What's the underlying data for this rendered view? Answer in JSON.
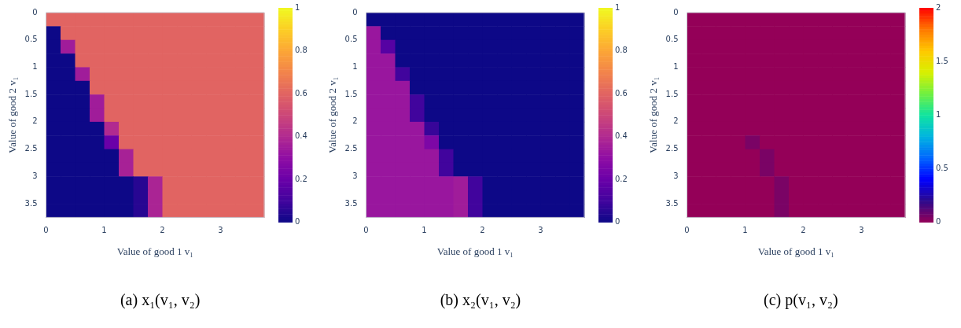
{
  "chart_data": [
    {
      "type": "heatmap",
      "title": "(a) x₁(v₁, v₂)",
      "xlabel": "Value of good 1 v₁",
      "ylabel": "Value of good 2 v₁",
      "x": [
        0.125,
        0.375,
        0.625,
        0.875,
        1.125,
        1.375,
        1.625,
        1.875,
        2.125,
        2.375,
        2.625,
        2.875,
        3.125,
        3.375,
        3.625
      ],
      "y": [
        0.125,
        0.375,
        0.625,
        0.875,
        1.125,
        1.375,
        1.625,
        1.875,
        2.125,
        2.375,
        2.625,
        2.875,
        3.125,
        3.375,
        3.625
      ],
      "xlim": [
        0,
        3.75
      ],
      "ylim": [
        3.75,
        0
      ],
      "xticks": [
        0,
        1,
        2,
        3
      ],
      "yticks": [
        0,
        0.5,
        1,
        1.5,
        2,
        2.5,
        3,
        3.5
      ],
      "clim": [
        0,
        1
      ],
      "cticks": [
        0,
        0.2,
        0.4,
        0.6,
        0.8,
        1
      ],
      "colors": [
        "#0d0887",
        "#41049d",
        "#6a00a8",
        "#8f0da4",
        "#b12a90",
        "#cc4778",
        "#e16462",
        "#f2844b",
        "#fca636",
        "#fcce25",
        "#f0f921"
      ],
      "cells": [
        [
          0.6,
          0.6,
          0.6,
          0.6,
          0.6,
          0.6,
          0.6,
          0.6,
          0.6,
          0.6,
          0.6,
          0.6,
          0.6,
          0.6,
          0.6
        ],
        [
          0,
          0.6,
          0.6,
          0.6,
          0.6,
          0.6,
          0.6,
          0.6,
          0.6,
          0.6,
          0.6,
          0.6,
          0.6,
          0.6,
          0.6
        ],
        [
          0,
          0.35,
          0.6,
          0.6,
          0.6,
          0.6,
          0.6,
          0.6,
          0.6,
          0.6,
          0.6,
          0.6,
          0.6,
          0.6,
          0.6
        ],
        [
          0,
          0,
          0.6,
          0.6,
          0.6,
          0.6,
          0.6,
          0.6,
          0.6,
          0.6,
          0.6,
          0.6,
          0.6,
          0.6,
          0.6
        ],
        [
          0,
          0,
          0.35,
          0.6,
          0.6,
          0.6,
          0.6,
          0.6,
          0.6,
          0.6,
          0.6,
          0.6,
          0.6,
          0.6,
          0.6
        ],
        [
          0,
          0,
          0,
          0.6,
          0.6,
          0.6,
          0.6,
          0.6,
          0.6,
          0.6,
          0.6,
          0.6,
          0.6,
          0.6,
          0.6
        ],
        [
          0,
          0,
          0,
          0.35,
          0.6,
          0.6,
          0.6,
          0.6,
          0.6,
          0.6,
          0.6,
          0.6,
          0.6,
          0.6,
          0.6
        ],
        [
          0,
          0,
          0,
          0.35,
          0.6,
          0.6,
          0.6,
          0.6,
          0.6,
          0.6,
          0.6,
          0.6,
          0.6,
          0.6,
          0.6
        ],
        [
          0,
          0,
          0,
          0,
          0.4,
          0.6,
          0.6,
          0.6,
          0.6,
          0.6,
          0.6,
          0.6,
          0.6,
          0.6,
          0.6
        ],
        [
          0,
          0,
          0,
          0,
          0.2,
          0.6,
          0.6,
          0.6,
          0.6,
          0.6,
          0.6,
          0.6,
          0.6,
          0.6,
          0.6
        ],
        [
          0,
          0,
          0,
          0,
          0,
          0.37,
          0.6,
          0.6,
          0.6,
          0.6,
          0.6,
          0.6,
          0.6,
          0.6,
          0.6
        ],
        [
          0,
          0,
          0,
          0,
          0,
          0.37,
          0.6,
          0.6,
          0.6,
          0.6,
          0.6,
          0.6,
          0.6,
          0.6,
          0.6
        ],
        [
          0,
          0,
          0,
          0,
          0,
          0,
          0.05,
          0.38,
          0.6,
          0.6,
          0.6,
          0.6,
          0.6,
          0.6,
          0.6
        ],
        [
          0,
          0,
          0,
          0,
          0,
          0,
          0.05,
          0.38,
          0.6,
          0.6,
          0.6,
          0.6,
          0.6,
          0.6,
          0.6
        ],
        [
          0,
          0,
          0,
          0,
          0,
          0,
          0.05,
          0.38,
          0.6,
          0.6,
          0.6,
          0.6,
          0.6,
          0.6,
          0.6
        ]
      ]
    },
    {
      "type": "heatmap",
      "title": "(b) x₂(v₁, v₂)",
      "xlabel": "Value of good 1 v₁",
      "ylabel": "Value of good 2 v₁",
      "x": [
        0.125,
        0.375,
        0.625,
        0.875,
        1.125,
        1.375,
        1.625,
        1.875,
        2.125,
        2.375,
        2.625,
        2.875,
        3.125,
        3.375,
        3.625
      ],
      "y": [
        0.125,
        0.375,
        0.625,
        0.875,
        1.125,
        1.375,
        1.625,
        1.875,
        2.125,
        2.375,
        2.625,
        2.875,
        3.125,
        3.375,
        3.625
      ],
      "xlim": [
        0,
        3.75
      ],
      "ylim": [
        3.75,
        0
      ],
      "xticks": [
        0,
        1,
        2,
        3
      ],
      "yticks": [
        0,
        0.5,
        1,
        1.5,
        2,
        2.5,
        3,
        3.5
      ],
      "clim": [
        0,
        1
      ],
      "cticks": [
        0,
        0.2,
        0.4,
        0.6,
        0.8,
        1
      ],
      "colors": [
        "#0d0887",
        "#41049d",
        "#6a00a8",
        "#8f0da4",
        "#b12a90",
        "#cc4778",
        "#e16462",
        "#f2844b",
        "#fca636",
        "#fcce25",
        "#f0f921"
      ],
      "cells": [
        [
          0,
          0,
          0,
          0,
          0,
          0,
          0,
          0,
          0,
          0,
          0,
          0,
          0,
          0,
          0
        ],
        [
          0.33,
          0,
          0,
          0,
          0,
          0,
          0,
          0,
          0,
          0,
          0,
          0,
          0,
          0,
          0
        ],
        [
          0.33,
          0.15,
          0,
          0,
          0,
          0,
          0,
          0,
          0,
          0,
          0,
          0,
          0,
          0,
          0
        ],
        [
          0.33,
          0.33,
          0,
          0,
          0,
          0,
          0,
          0,
          0,
          0,
          0,
          0,
          0,
          0,
          0
        ],
        [
          0.33,
          0.33,
          0.1,
          0,
          0,
          0,
          0,
          0,
          0,
          0,
          0,
          0,
          0,
          0,
          0
        ],
        [
          0.33,
          0.33,
          0.33,
          0,
          0,
          0,
          0,
          0,
          0,
          0,
          0,
          0,
          0,
          0,
          0
        ],
        [
          0.33,
          0.33,
          0.33,
          0.1,
          0,
          0,
          0,
          0,
          0,
          0,
          0,
          0,
          0,
          0,
          0
        ],
        [
          0.33,
          0.33,
          0.33,
          0.1,
          0,
          0,
          0,
          0,
          0,
          0,
          0,
          0,
          0,
          0,
          0
        ],
        [
          0.33,
          0.33,
          0.33,
          0.33,
          0.08,
          0,
          0,
          0,
          0,
          0,
          0,
          0,
          0,
          0,
          0
        ],
        [
          0.33,
          0.33,
          0.33,
          0.33,
          0.25,
          0,
          0,
          0,
          0,
          0,
          0,
          0,
          0,
          0,
          0
        ],
        [
          0.33,
          0.33,
          0.33,
          0.33,
          0.33,
          0.1,
          0,
          0,
          0,
          0,
          0,
          0,
          0,
          0,
          0
        ],
        [
          0.33,
          0.33,
          0.33,
          0.33,
          0.33,
          0.1,
          0,
          0,
          0,
          0,
          0,
          0,
          0,
          0,
          0
        ],
        [
          0.33,
          0.33,
          0.33,
          0.33,
          0.33,
          0.33,
          0.35,
          0.1,
          0,
          0,
          0,
          0,
          0,
          0,
          0
        ],
        [
          0.33,
          0.33,
          0.33,
          0.33,
          0.33,
          0.33,
          0.35,
          0.1,
          0,
          0,
          0,
          0,
          0,
          0,
          0
        ],
        [
          0.33,
          0.33,
          0.33,
          0.33,
          0.33,
          0.33,
          0.35,
          0.1,
          0,
          0,
          0,
          0,
          0,
          0,
          0
        ]
      ]
    },
    {
      "type": "heatmap",
      "title": "(c) p(v₁, v₂)",
      "xlabel": "Value of good 1 v₁",
      "ylabel": "Value of good 2 v₁",
      "x": [
        0.125,
        0.375,
        0.625,
        0.875,
        1.125,
        1.375,
        1.625,
        1.875,
        2.125,
        2.375,
        2.625,
        2.875,
        3.125,
        3.375,
        3.625
      ],
      "y": [
        0.125,
        0.375,
        0.625,
        0.875,
        1.125,
        1.375,
        1.625,
        1.875,
        2.125,
        2.375,
        2.625,
        2.875,
        3.125,
        3.375,
        3.625
      ],
      "xlim": [
        0,
        3.75
      ],
      "ylim": [
        3.75,
        0
      ],
      "xticks": [
        0,
        1,
        2,
        3
      ],
      "yticks": [
        0,
        0.5,
        1,
        1.5,
        2,
        2.5,
        3,
        3.5
      ],
      "clim": [
        0,
        2
      ],
      "cticks": [
        0,
        0.5,
        1,
        1.5,
        2
      ],
      "colors": [
        "#940058",
        "#2c0a8c",
        "#0000ff",
        "#0066ff",
        "#00b4e0",
        "#10e4a0",
        "#70f040",
        "#d8f000",
        "#ffc800",
        "#ff7800",
        "#ff0000"
      ],
      "cells": [
        [
          0,
          0,
          0,
          0,
          0,
          0,
          0,
          0,
          0,
          0,
          0,
          0,
          0,
          0,
          0
        ],
        [
          0,
          0,
          0,
          0,
          0,
          0,
          0,
          0,
          0,
          0,
          0,
          0,
          0,
          0,
          0
        ],
        [
          0,
          0,
          0,
          0,
          0,
          0,
          0,
          0,
          0,
          0,
          0,
          0,
          0,
          0,
          0
        ],
        [
          0,
          0,
          0,
          0,
          0,
          0,
          0,
          0,
          0,
          0,
          0,
          0,
          0,
          0,
          0
        ],
        [
          0,
          0,
          0,
          0,
          0,
          0,
          0,
          0,
          0,
          0,
          0,
          0,
          0,
          0,
          0
        ],
        [
          0,
          0,
          0,
          0,
          0,
          0,
          0,
          0,
          0,
          0,
          0,
          0,
          0,
          0,
          0
        ],
        [
          0,
          0,
          0,
          0,
          0,
          0,
          0,
          0,
          0,
          0,
          0,
          0,
          0,
          0,
          0
        ],
        [
          0,
          0,
          0,
          0,
          0,
          0,
          0,
          0,
          0,
          0,
          0,
          0,
          0,
          0,
          0
        ],
        [
          0,
          0,
          0,
          0,
          0,
          0,
          0,
          0,
          0,
          0,
          0,
          0,
          0,
          0,
          0
        ],
        [
          0,
          0,
          0,
          0,
          0.05,
          0,
          0,
          0,
          0,
          0,
          0,
          0,
          0,
          0,
          0
        ],
        [
          0,
          0,
          0,
          0,
          0,
          0.05,
          0,
          0,
          0,
          0,
          0,
          0,
          0,
          0,
          0
        ],
        [
          0,
          0,
          0,
          0,
          0,
          0.05,
          0,
          0,
          0,
          0,
          0,
          0,
          0,
          0,
          0
        ],
        [
          0,
          0,
          0,
          0,
          0,
          0,
          0.05,
          0,
          0,
          0,
          0,
          0,
          0,
          0,
          0
        ],
        [
          0,
          0,
          0,
          0,
          0,
          0,
          0.05,
          0,
          0,
          0,
          0,
          0,
          0,
          0,
          0
        ],
        [
          0,
          0,
          0,
          0,
          0,
          0,
          0.05,
          0,
          0,
          0,
          0,
          0,
          0,
          0,
          0
        ]
      ]
    }
  ]
}
